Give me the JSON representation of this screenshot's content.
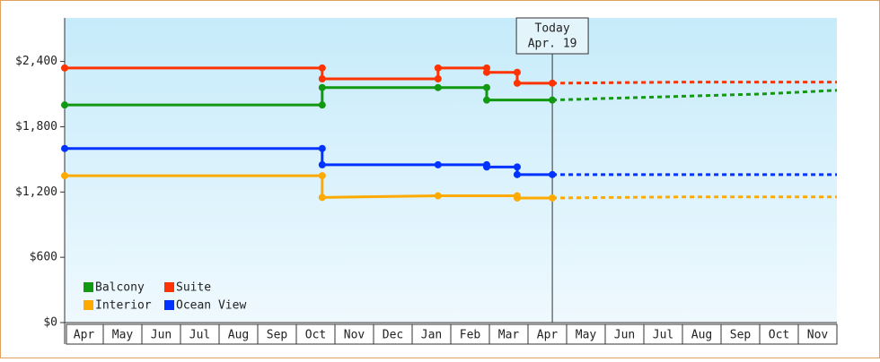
{
  "chart_data": {
    "type": "line",
    "categories": [
      "Apr",
      "May",
      "Jun",
      "Jul",
      "Aug",
      "Sep",
      "Oct",
      "Nov",
      "Dec",
      "Jan",
      "Feb",
      "Mar",
      "Apr",
      "May",
      "Jun",
      "Jul",
      "Aug",
      "Sep",
      "Oct",
      "Nov"
    ],
    "xlim": [
      0,
      20
    ],
    "ylim": [
      0,
      2800
    ],
    "yticks": [
      {
        "value": 0,
        "label": "$0"
      },
      {
        "value": 600,
        "label": "$600"
      },
      {
        "value": 1200,
        "label": "$1,200"
      },
      {
        "value": 1800,
        "label": "$1,800"
      },
      {
        "value": 2400,
        "label": "$2,400"
      }
    ],
    "annotation": {
      "x": 12.63,
      "lines": [
        "Today",
        "Apr. 19"
      ]
    },
    "series": [
      {
        "name": "Balcony",
        "color": "#119911",
        "x": [
          0,
          6.67,
          6.67,
          9.67,
          10.93,
          10.93,
          12.63
        ],
        "values": [
          2000,
          2000,
          2160,
          2160,
          2160,
          2045,
          2045
        ],
        "forecast": {
          "x": [
            12.63,
            14,
            16,
            18,
            20
          ],
          "values": [
            2045,
            2060,
            2080,
            2100,
            2135
          ]
        }
      },
      {
        "name": "Suite",
        "color": "#ff3300",
        "x": [
          0,
          6.67,
          6.67,
          9.67,
          9.67,
          10.93,
          10.93,
          11.72,
          11.72,
          12.63
        ],
        "values": [
          2340,
          2340,
          2240,
          2240,
          2340,
          2340,
          2300,
          2300,
          2200,
          2200
        ],
        "forecast": {
          "x": [
            12.63,
            16,
            20
          ],
          "values": [
            2200,
            2210,
            2210
          ]
        }
      },
      {
        "name": "Interior",
        "color": "#ffaa00",
        "x": [
          0,
          6.67,
          6.67,
          9.67,
          11.72,
          11.72,
          12.63
        ],
        "values": [
          1350,
          1350,
          1150,
          1165,
          1165,
          1145,
          1145
        ],
        "forecast": {
          "x": [
            12.63,
            16,
            20
          ],
          "values": [
            1145,
            1155,
            1155
          ]
        }
      },
      {
        "name": "Ocean View",
        "color": "#0033ff",
        "x": [
          0,
          6.67,
          6.67,
          9.67,
          10.93,
          10.93,
          11.72,
          11.72,
          12.63
        ],
        "values": [
          1600,
          1600,
          1450,
          1450,
          1450,
          1430,
          1430,
          1360,
          1360
        ],
        "forecast": {
          "x": [
            12.63,
            20
          ],
          "values": [
            1360,
            1360
          ]
        }
      }
    ]
  }
}
